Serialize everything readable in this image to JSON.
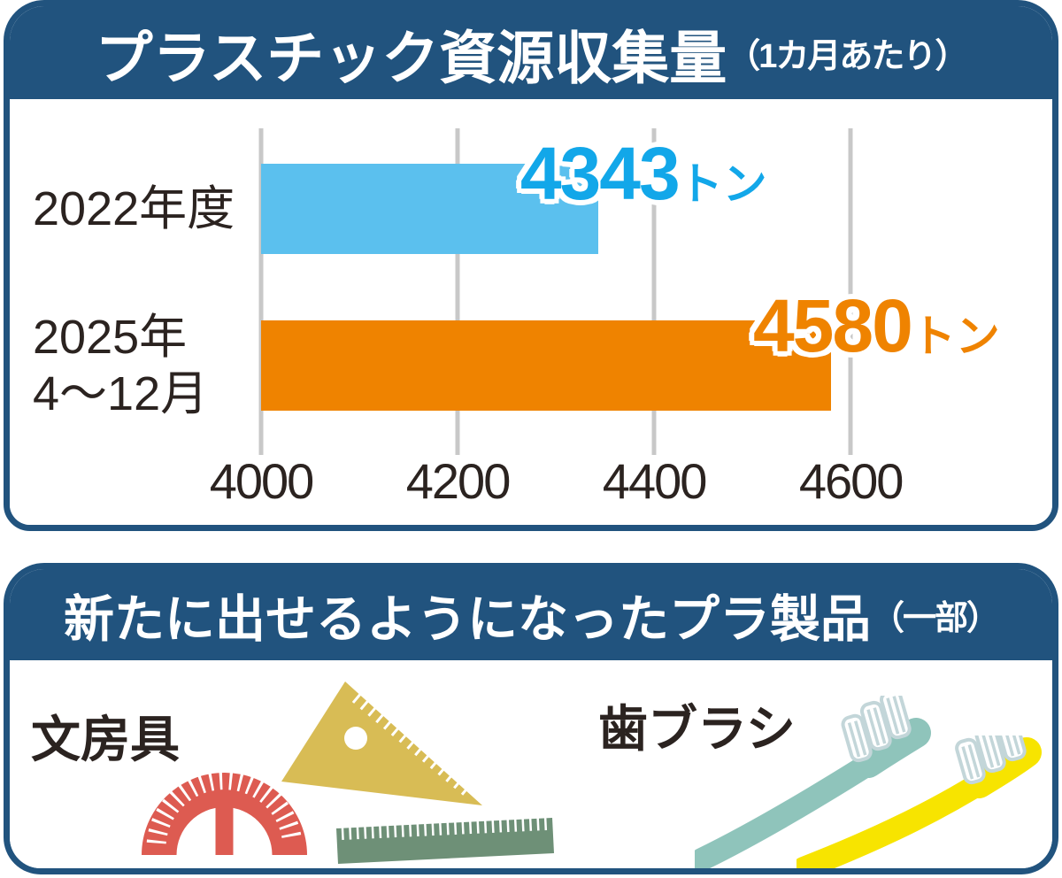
{
  "colors": {
    "panelBlue": "#21537E",
    "barBlue": "#5BC0EE",
    "valueBlue": "#12A7E9",
    "orange": "#EF8300",
    "textDark": "#2B2320",
    "grid": "#C8C8C8",
    "red": "#DD5B51",
    "mustard": "#D8BC55",
    "green": "#6E9077",
    "teal": "#8FC4BB",
    "yellow": "#F7E400",
    "bristle": "#C3D6D9"
  },
  "panel1": {
    "header": {
      "title": "プラスチック資源収集量",
      "note": "（1カ月あたり）"
    },
    "chart_data": {
      "type": "bar",
      "orientation": "horizontal",
      "categories": [
        [
          "2022年度"
        ],
        [
          "2025年",
          "4〜12月"
        ]
      ],
      "values": [
        4343,
        4580
      ],
      "unit": "トン",
      "bar_colors": [
        "#5BC0EE",
        "#EF8300"
      ],
      "value_label_colors": [
        "#12A7E9",
        "#EF8300"
      ],
      "xticks": [
        4000,
        4200,
        4400,
        4600
      ],
      "xlim": [
        4000,
        4780
      ],
      "grid": true,
      "legend": false
    }
  },
  "panel2": {
    "header": {
      "title": "新たに出せるようになったプラ製品",
      "note": "（一部）"
    },
    "items": [
      {
        "label": "文房具",
        "icons": [
          "triangle-ruler",
          "protractor",
          "ruler"
        ]
      },
      {
        "label": "歯ブラシ",
        "icons": [
          "toothbrush-teal",
          "toothbrush-yellow"
        ]
      }
    ]
  }
}
